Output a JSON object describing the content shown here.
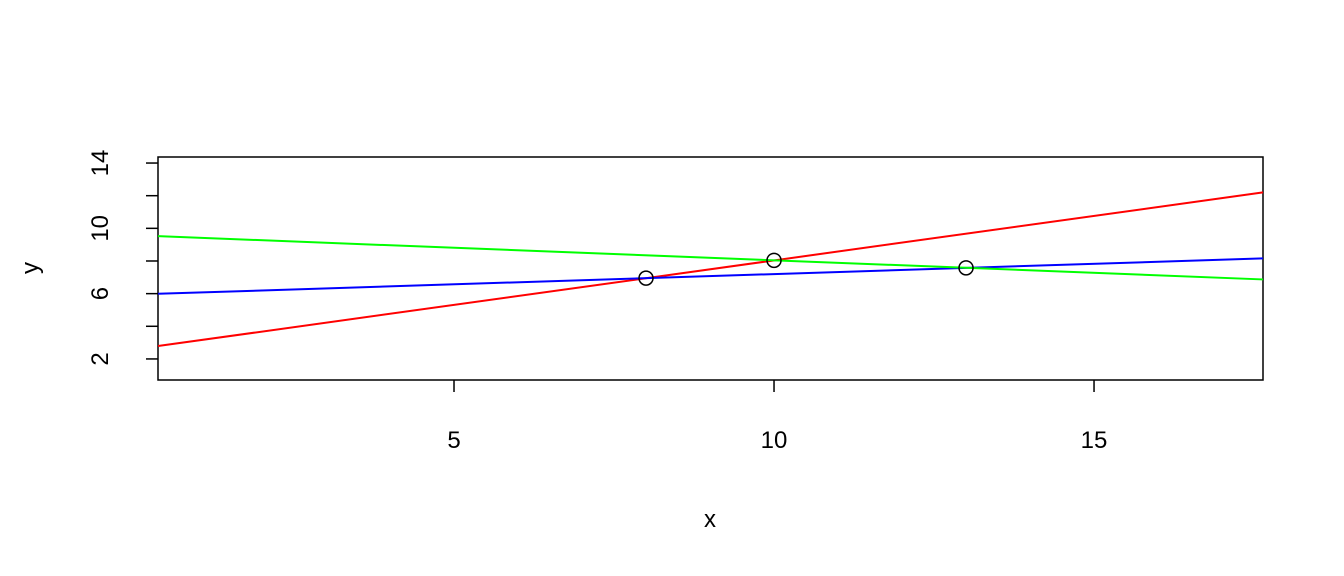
{
  "chart_data": {
    "type": "scatter",
    "xlabel": "x",
    "ylabel": "y",
    "xlim": [
      0.375,
      17.64
    ],
    "ylim": [
      0.71,
      14.37
    ],
    "xticks": [
      5,
      10,
      15
    ],
    "yticks": [
      2,
      {
        "value": 4,
        "label": null
      },
      6,
      {
        "value": 8,
        "label": null
      },
      10,
      {
        "value": 12,
        "label": null
      },
      14
    ],
    "x": [
      8,
      10,
      13
    ],
    "values": [
      6.95,
      8.04,
      7.58
    ],
    "color": "#000000",
    "lines": [
      {
        "color": "#ff0000",
        "x": [
          0.375,
          17.64
        ],
        "values": [
          2.79,
          12.2
        ]
      },
      {
        "color": "#0000ff",
        "x": [
          0.375,
          17.64
        ],
        "values": [
          5.99,
          8.16
        ]
      },
      {
        "color": "#00ff00",
        "x": [
          0.375,
          17.64
        ],
        "values": [
          9.52,
          6.87
        ]
      }
    ]
  }
}
